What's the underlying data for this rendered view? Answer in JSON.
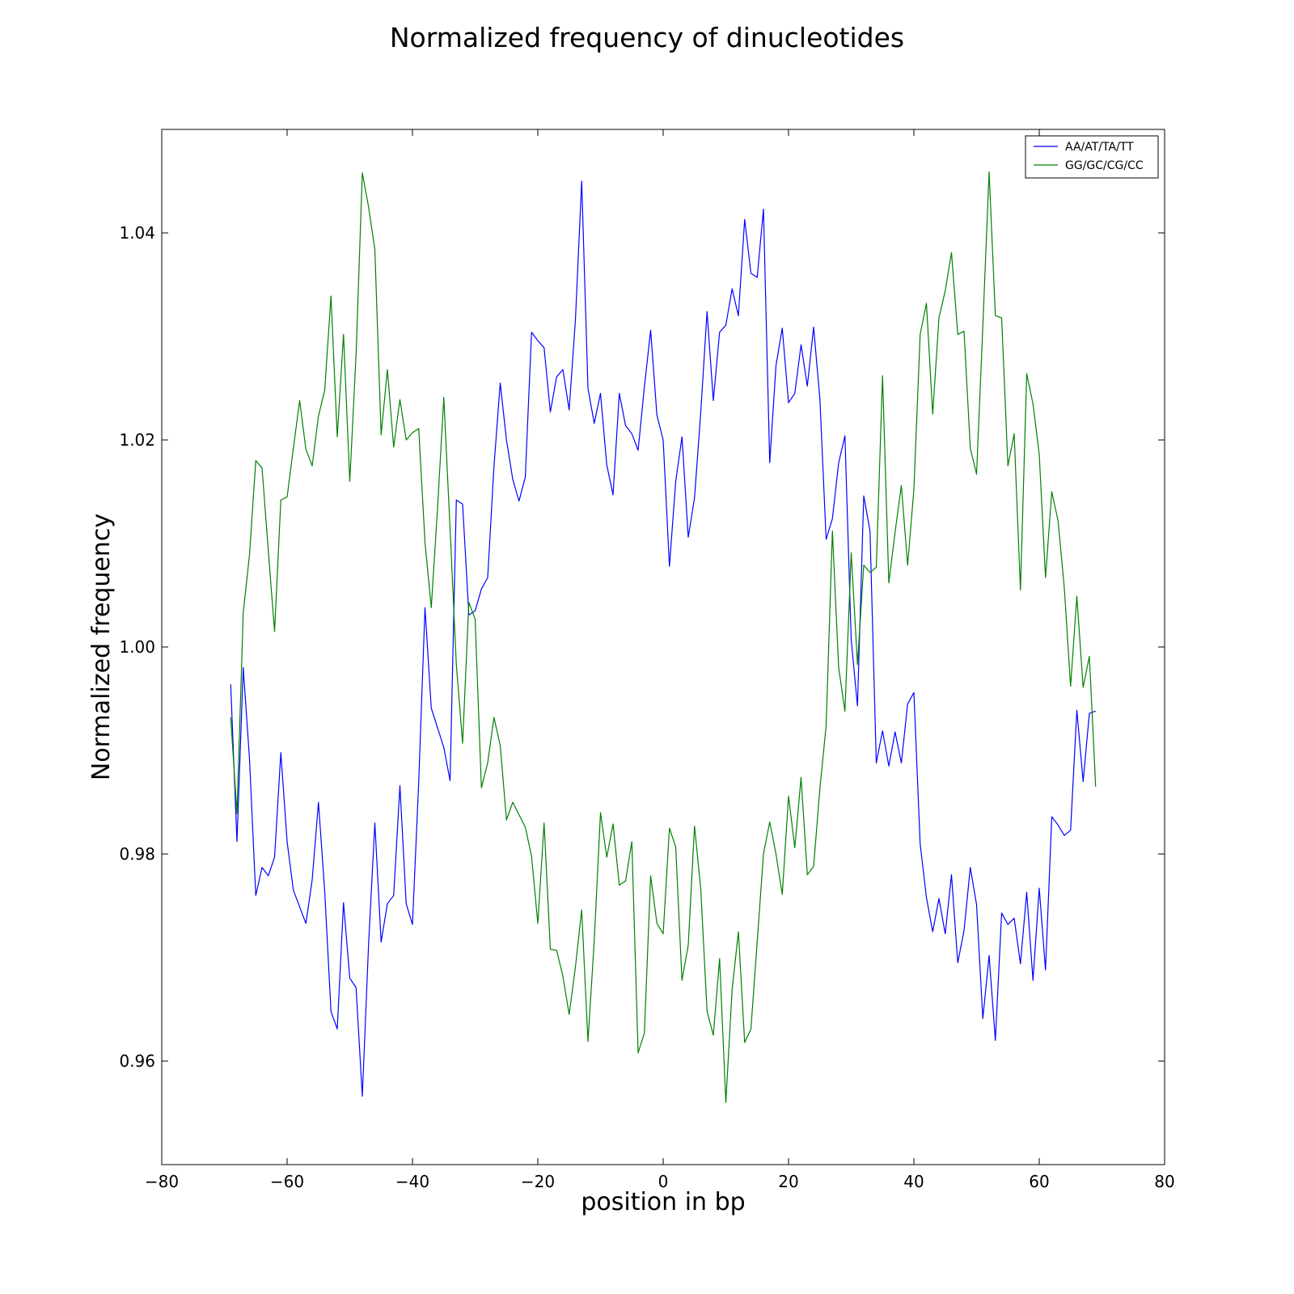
{
  "chart_data": {
    "type": "line",
    "title": "Normalized frequency of dinucleotides",
    "xlabel": "position in bp",
    "ylabel": "Normalized frequency",
    "xlim": [
      -80,
      80
    ],
    "ylim": [
      0.95,
      1.05
    ],
    "xticks": [
      -80,
      -60,
      -40,
      -20,
      0,
      20,
      40,
      60,
      80
    ],
    "xtick_labels": [
      "−80",
      "−60",
      "−40",
      "−20",
      "0",
      "20",
      "40",
      "60",
      "80"
    ],
    "yticks": [
      0.96,
      0.98,
      1.0,
      1.02,
      1.04
    ],
    "ytick_labels": [
      "0.96",
      "0.98",
      "1.00",
      "1.02",
      "1.04"
    ],
    "grid": false,
    "legend_position": "top-right",
    "x": [
      -69,
      -68,
      -67,
      -66,
      -65,
      -64,
      -63,
      -62,
      -61,
      -60,
      -59,
      -58,
      -57,
      -56,
      -55,
      -54,
      -53,
      -52,
      -51,
      -50,
      -49,
      -48,
      -47,
      -46,
      -45,
      -44,
      -43,
      -42,
      -41,
      -40,
      -39,
      -38,
      -37,
      -36,
      -35,
      -34,
      -33,
      -32,
      -31,
      -30,
      -29,
      -28,
      -27,
      -26,
      -25,
      -24,
      -23,
      -22,
      -21,
      -20,
      -19,
      -18,
      -17,
      -16,
      -15,
      -14,
      -13,
      -12,
      -11,
      -10,
      -9,
      -8,
      -7,
      -6,
      -5,
      -4,
      -3,
      -2,
      -1,
      0,
      1,
      2,
      3,
      4,
      5,
      6,
      7,
      8,
      9,
      10,
      11,
      12,
      13,
      14,
      15,
      16,
      17,
      18,
      19,
      20,
      21,
      22,
      23,
      24,
      25,
      26,
      27,
      28,
      29,
      30,
      31,
      32,
      33,
      34,
      35,
      36,
      37,
      38,
      39,
      40,
      41,
      42,
      43,
      44,
      45,
      46,
      47,
      48,
      49,
      50,
      51,
      52,
      53,
      54,
      55,
      56,
      57,
      58,
      59,
      60,
      61,
      62,
      63,
      64,
      65,
      66,
      67,
      68,
      69
    ],
    "series": [
      {
        "name": "AA/AT/TA/TT",
        "color": "#0000ff",
        "values": [
          0.9964,
          0.9812,
          0.998,
          0.9892,
          0.976,
          0.9787,
          0.9779,
          0.9797,
          0.9898,
          0.9812,
          0.9765,
          0.9749,
          0.9733,
          0.9775,
          0.985,
          0.9764,
          0.9648,
          0.9631,
          0.9753,
          0.968,
          0.9671,
          0.9566,
          0.9713,
          0.983,
          0.9715,
          0.9752,
          0.976,
          0.9866,
          0.9752,
          0.9732,
          0.987,
          1.0038,
          0.9941,
          0.9922,
          0.9903,
          0.9871,
          1.0142,
          1.0138,
          1.0031,
          1.0035,
          1.0056,
          1.0067,
          1.0174,
          1.0255,
          1.02,
          1.0162,
          1.0141,
          1.0164,
          1.0304,
          1.0296,
          1.0289,
          1.0227,
          1.0261,
          1.0268,
          1.0229,
          1.0316,
          1.045,
          1.025,
          1.0216,
          1.0245,
          1.0176,
          1.0147,
          1.0245,
          1.0214,
          1.0206,
          1.019,
          1.0251,
          1.0306,
          1.0224,
          1.02,
          1.0078,
          1.016,
          1.0203,
          1.0106,
          1.0144,
          1.0227,
          1.0324,
          1.0238,
          1.0304,
          1.0311,
          1.0346,
          1.032,
          1.0413,
          1.0361,
          1.0357,
          1.0423,
          1.0178,
          1.0272,
          1.0308,
          1.0236,
          1.0245,
          1.0292,
          1.0252,
          1.0309,
          1.024,
          1.0104,
          1.0124,
          1.0178,
          1.0204,
          1.0007,
          0.9943,
          1.0146,
          1.0112,
          0.9888,
          0.9919,
          0.9885,
          0.9918,
          0.9888,
          0.9945,
          0.9956,
          0.981,
          0.9758,
          0.9725,
          0.9757,
          0.9723,
          0.978,
          0.9695,
          0.9726,
          0.9787,
          0.9751,
          0.9641,
          0.9702,
          0.962,
          0.9743,
          0.9732,
          0.9738,
          0.9694,
          0.9763,
          0.9678,
          0.9767,
          0.9688,
          0.9836,
          0.9828,
          0.9818,
          0.9823,
          0.9939,
          0.987,
          0.9936,
          0.9938
        ]
      },
      {
        "name": "GG/GC/CG/CC",
        "color": "#008000",
        "values": [
          0.9932,
          0.9839,
          1.0033,
          1.0089,
          1.018,
          1.0173,
          1.0093,
          1.0015,
          1.0142,
          1.0145,
          1.0192,
          1.0238,
          1.0191,
          1.0175,
          1.0223,
          1.0248,
          1.0339,
          1.0203,
          1.0302,
          1.016,
          1.0282,
          1.0458,
          1.0425,
          1.0384,
          1.0205,
          1.0268,
          1.0193,
          1.0239,
          1.02,
          1.0207,
          1.0211,
          1.0101,
          1.0038,
          1.0134,
          1.0241,
          1.0114,
          0.9983,
          0.9907,
          1.0043,
          1.0027,
          0.9864,
          0.9888,
          0.9932,
          0.9905,
          0.9833,
          0.985,
          0.9838,
          0.9826,
          0.9798,
          0.9733,
          0.983,
          0.9708,
          0.9707,
          0.9682,
          0.9645,
          0.9691,
          0.9746,
          0.9619,
          0.9716,
          0.984,
          0.9797,
          0.9829,
          0.977,
          0.9774,
          0.9812,
          0.9608,
          0.9627,
          0.9779,
          0.9733,
          0.9723,
          0.9825,
          0.9807,
          0.9678,
          0.9712,
          0.9827,
          0.9766,
          0.9648,
          0.9625,
          0.9699,
          0.956,
          0.9669,
          0.9725,
          0.9618,
          0.9631,
          0.9715,
          0.98,
          0.9831,
          0.98,
          0.9761,
          0.9856,
          0.9806,
          0.9874,
          0.978,
          0.9788,
          0.9863,
          0.9924,
          1.0112,
          0.998,
          0.9938,
          1.0091,
          0.9983,
          1.0079,
          1.0072,
          1.0077,
          1.0262,
          1.0062,
          1.0111,
          1.0156,
          1.0079,
          1.0152,
          1.0302,
          1.0332,
          1.0225,
          1.0318,
          1.0344,
          1.0381,
          1.0302,
          1.0305,
          1.0192,
          1.0167,
          1.031,
          1.0459,
          1.032,
          1.0318,
          1.0175,
          1.0206,
          1.0055,
          1.0264,
          1.0235,
          1.0186,
          1.0067,
          1.015,
          1.0122,
          1.0057,
          0.9962,
          1.0049,
          0.9961,
          0.9991,
          0.9865
        ]
      }
    ]
  }
}
